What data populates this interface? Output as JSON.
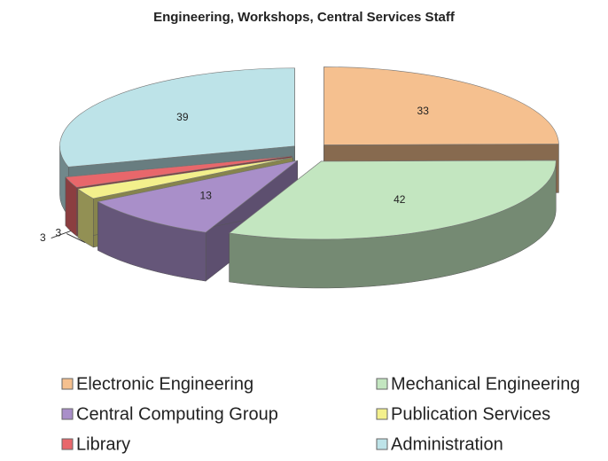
{
  "chart_data": {
    "type": "pie3d",
    "title": "Engineering, Workshops, Central Services Staff",
    "categories": [
      "Electronic Engineering",
      "Mechanical Engineering",
      "Central Computing Group",
      "Publication Services",
      "Library",
      "Administration"
    ],
    "values": [
      33,
      42,
      13,
      3,
      3,
      39
    ],
    "colors": [
      "#f5c08f",
      "#c3e6c0",
      "#a98fc9",
      "#f3f08c",
      "#e8676b",
      "#bde3e8"
    ],
    "legend": "bottom"
  }
}
